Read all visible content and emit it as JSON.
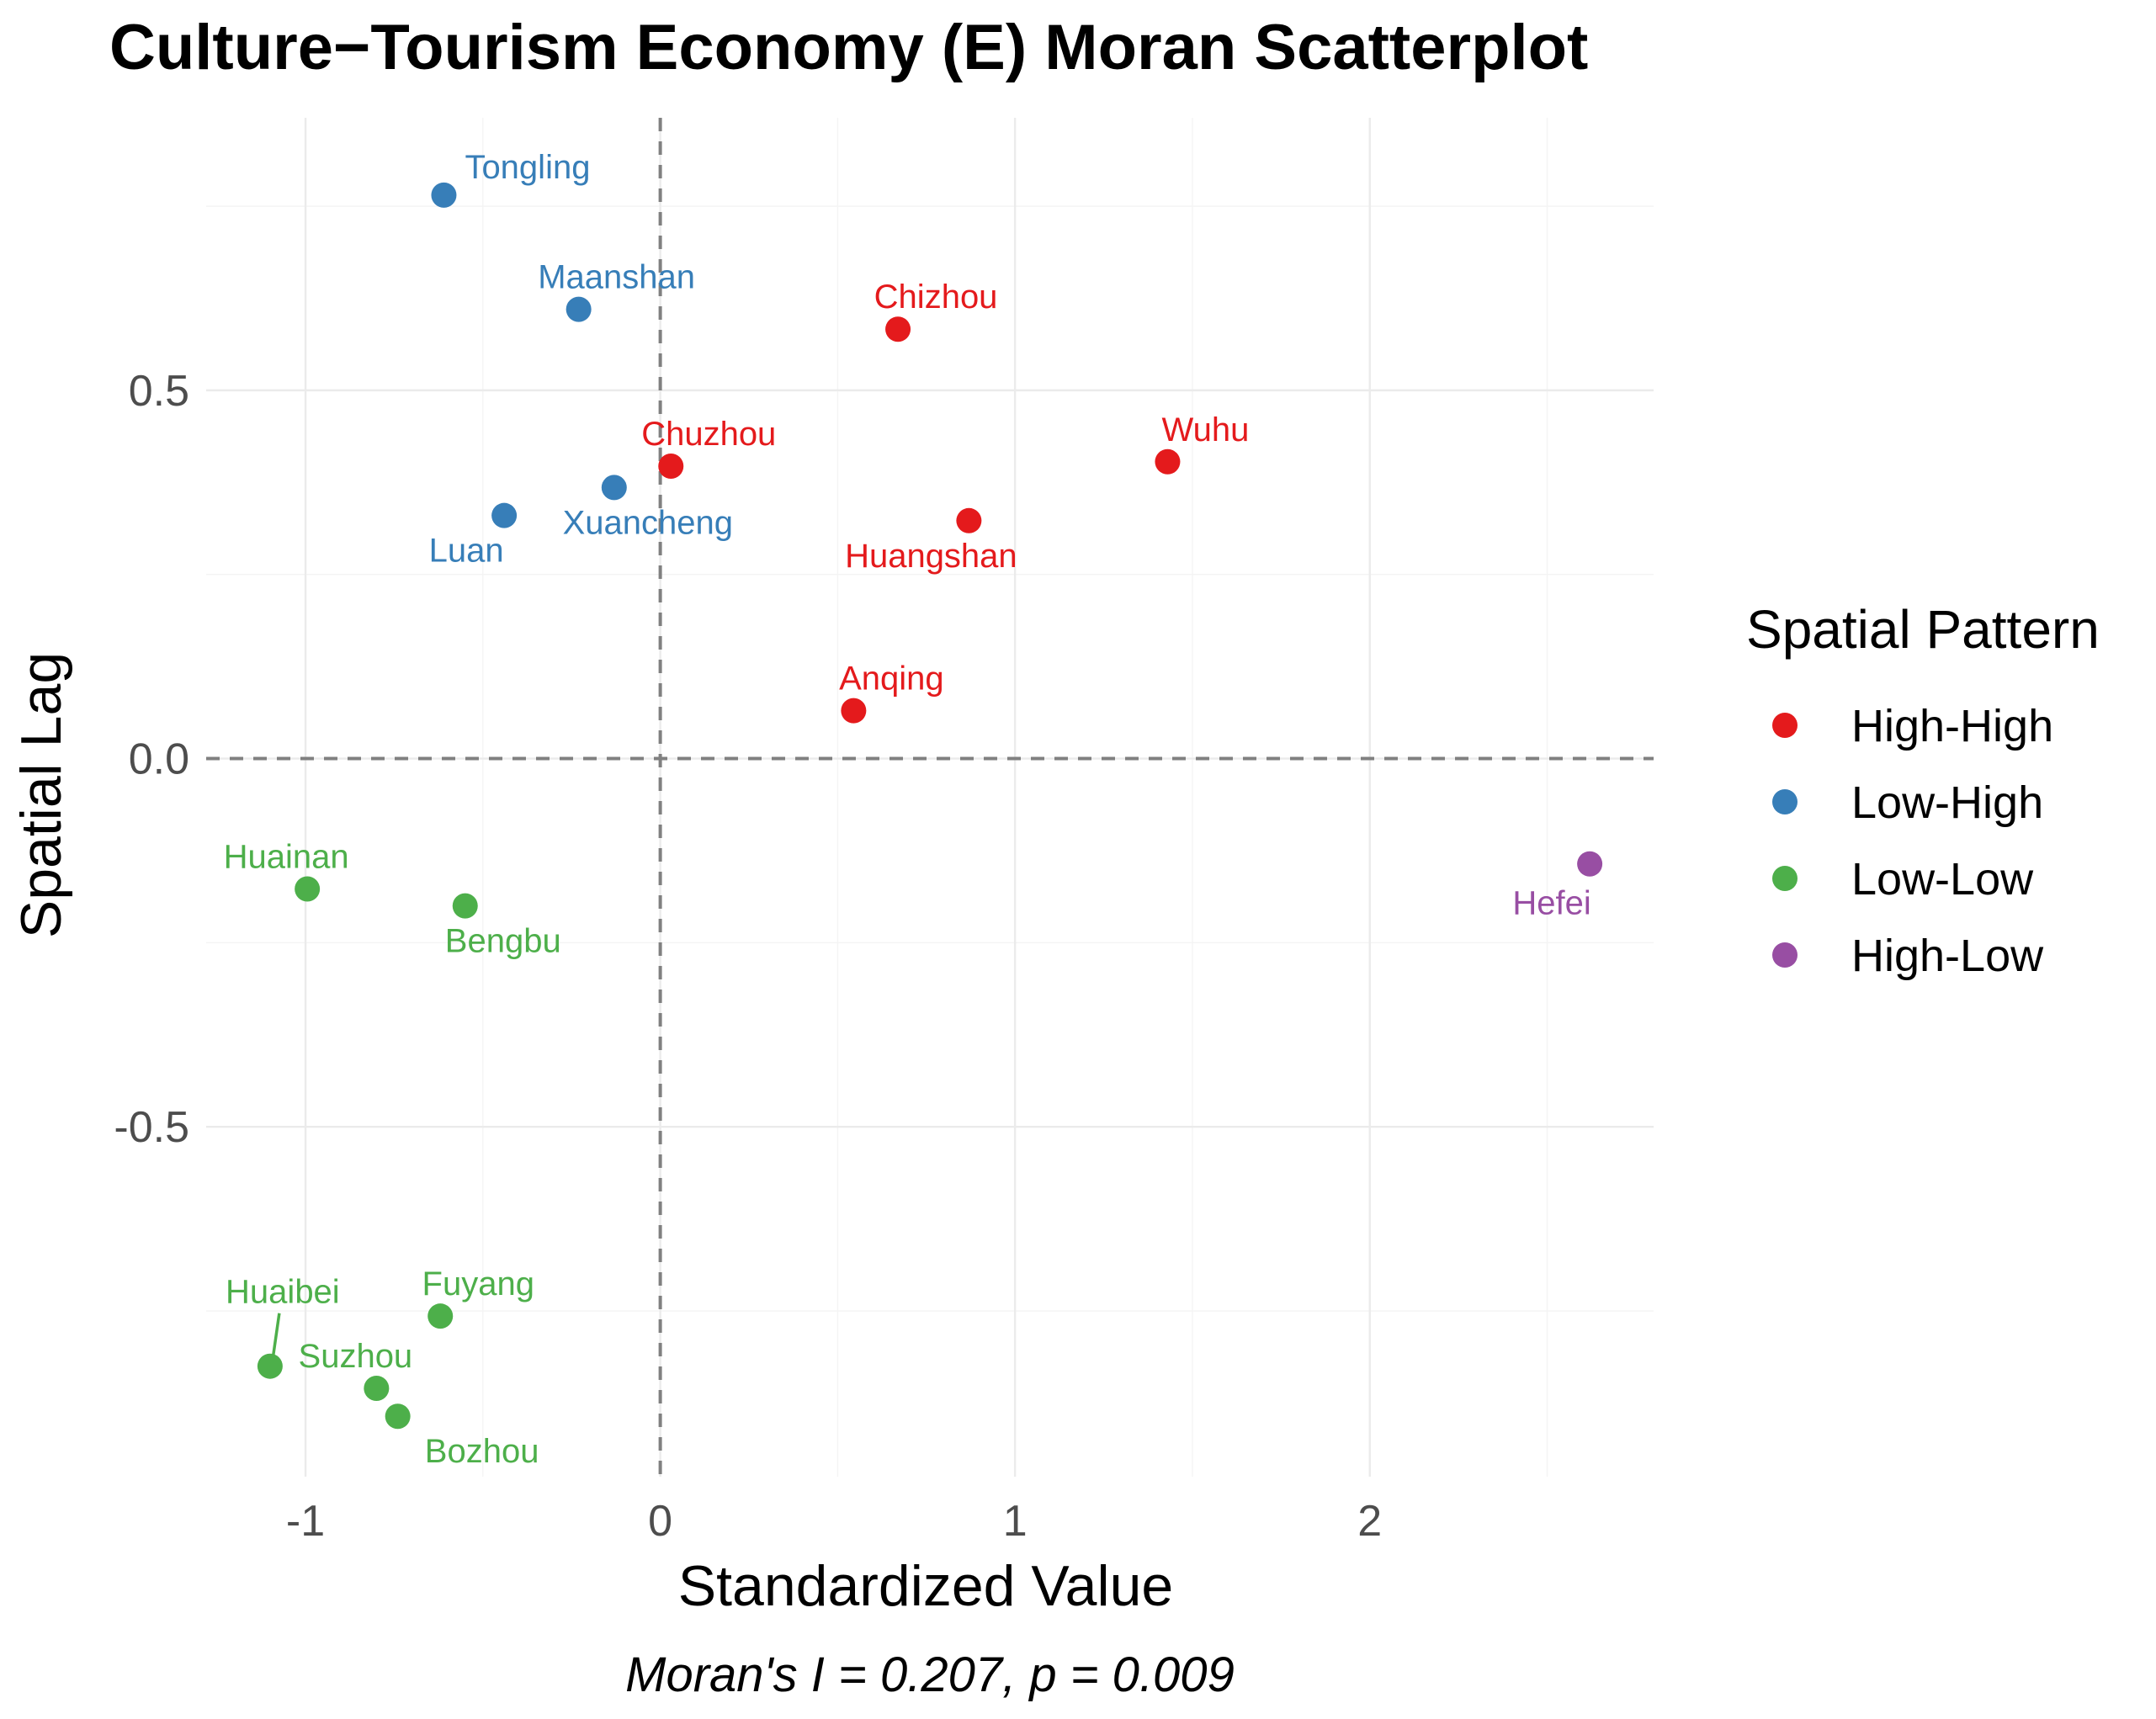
{
  "chart_data": {
    "type": "scatter",
    "title": "Culture−Tourism Economy (E) Moran Scatterplot",
    "xlabel": "Standardized Value",
    "ylabel": "Spatial Lag",
    "caption": "Moran's I = 0.207, p = 0.009",
    "xlim": [
      -1.28,
      2.8
    ],
    "ylim": [
      -0.975,
      0.87
    ],
    "x_ticks": [
      -1,
      0,
      1,
      2
    ],
    "x_tick_labels": [
      "-1",
      "0",
      "1",
      "2"
    ],
    "y_ticks": [
      -0.5,
      0.0,
      0.5
    ],
    "y_tick_labels": [
      "-0.5",
      "0.0",
      "0.5"
    ],
    "x_minor": [
      -0.5,
      0.5,
      1.5,
      2.5
    ],
    "y_minor": [
      -0.75,
      -0.25,
      0.25,
      0.75
    ],
    "grid": true,
    "reference_lines": {
      "x": 0,
      "y": 0,
      "style": "dashed"
    },
    "legend": {
      "title": "Spatial Pattern",
      "placement": "right",
      "entries": [
        {
          "name": "High-High",
          "color": "#E41A1C"
        },
        {
          "name": "Low-High",
          "color": "#377EB8"
        },
        {
          "name": "Low-Low",
          "color": "#4DAF4A"
        },
        {
          "name": "High-Low",
          "color": "#984EA3"
        }
      ]
    },
    "points": [
      {
        "label": "Tongling",
        "pattern": "Low-High",
        "x": -0.61,
        "y": 0.765
      },
      {
        "label": "Maanshan",
        "pattern": "Low-High",
        "x": -0.23,
        "y": 0.61
      },
      {
        "label": "Xuancheng",
        "pattern": "Low-High",
        "x": -0.13,
        "y": 0.368
      },
      {
        "label": "Luan",
        "pattern": "Low-High",
        "x": -0.44,
        "y": 0.33
      },
      {
        "label": "Chizhou",
        "pattern": "High-High",
        "x": 0.67,
        "y": 0.583
      },
      {
        "label": "Chuzhou",
        "pattern": "High-High",
        "x": 0.03,
        "y": 0.397
      },
      {
        "label": "Wuhu",
        "pattern": "High-High",
        "x": 1.43,
        "y": 0.403
      },
      {
        "label": "Huangshan",
        "pattern": "High-High",
        "x": 0.87,
        "y": 0.323
      },
      {
        "label": "Anqing",
        "pattern": "High-High",
        "x": 0.545,
        "y": 0.065
      },
      {
        "label": "Huainan",
        "pattern": "Low-Low",
        "x": -0.995,
        "y": -0.177
      },
      {
        "label": "Bengbu",
        "pattern": "Low-Low",
        "x": -0.55,
        "y": -0.2
      },
      {
        "label": "Fuyang",
        "pattern": "Low-Low",
        "x": -0.62,
        "y": -0.757
      },
      {
        "label": "Huaibei",
        "pattern": "Low-Low",
        "x": -1.1,
        "y": -0.825
      },
      {
        "label": "Suzhou",
        "pattern": "Low-Low",
        "x": -0.8,
        "y": -0.855
      },
      {
        "label": "Bozhou",
        "pattern": "Low-Low",
        "x": -0.74,
        "y": -0.893
      },
      {
        "label": "Hefei",
        "pattern": "High-Low",
        "x": 2.62,
        "y": -0.143
      }
    ]
  }
}
